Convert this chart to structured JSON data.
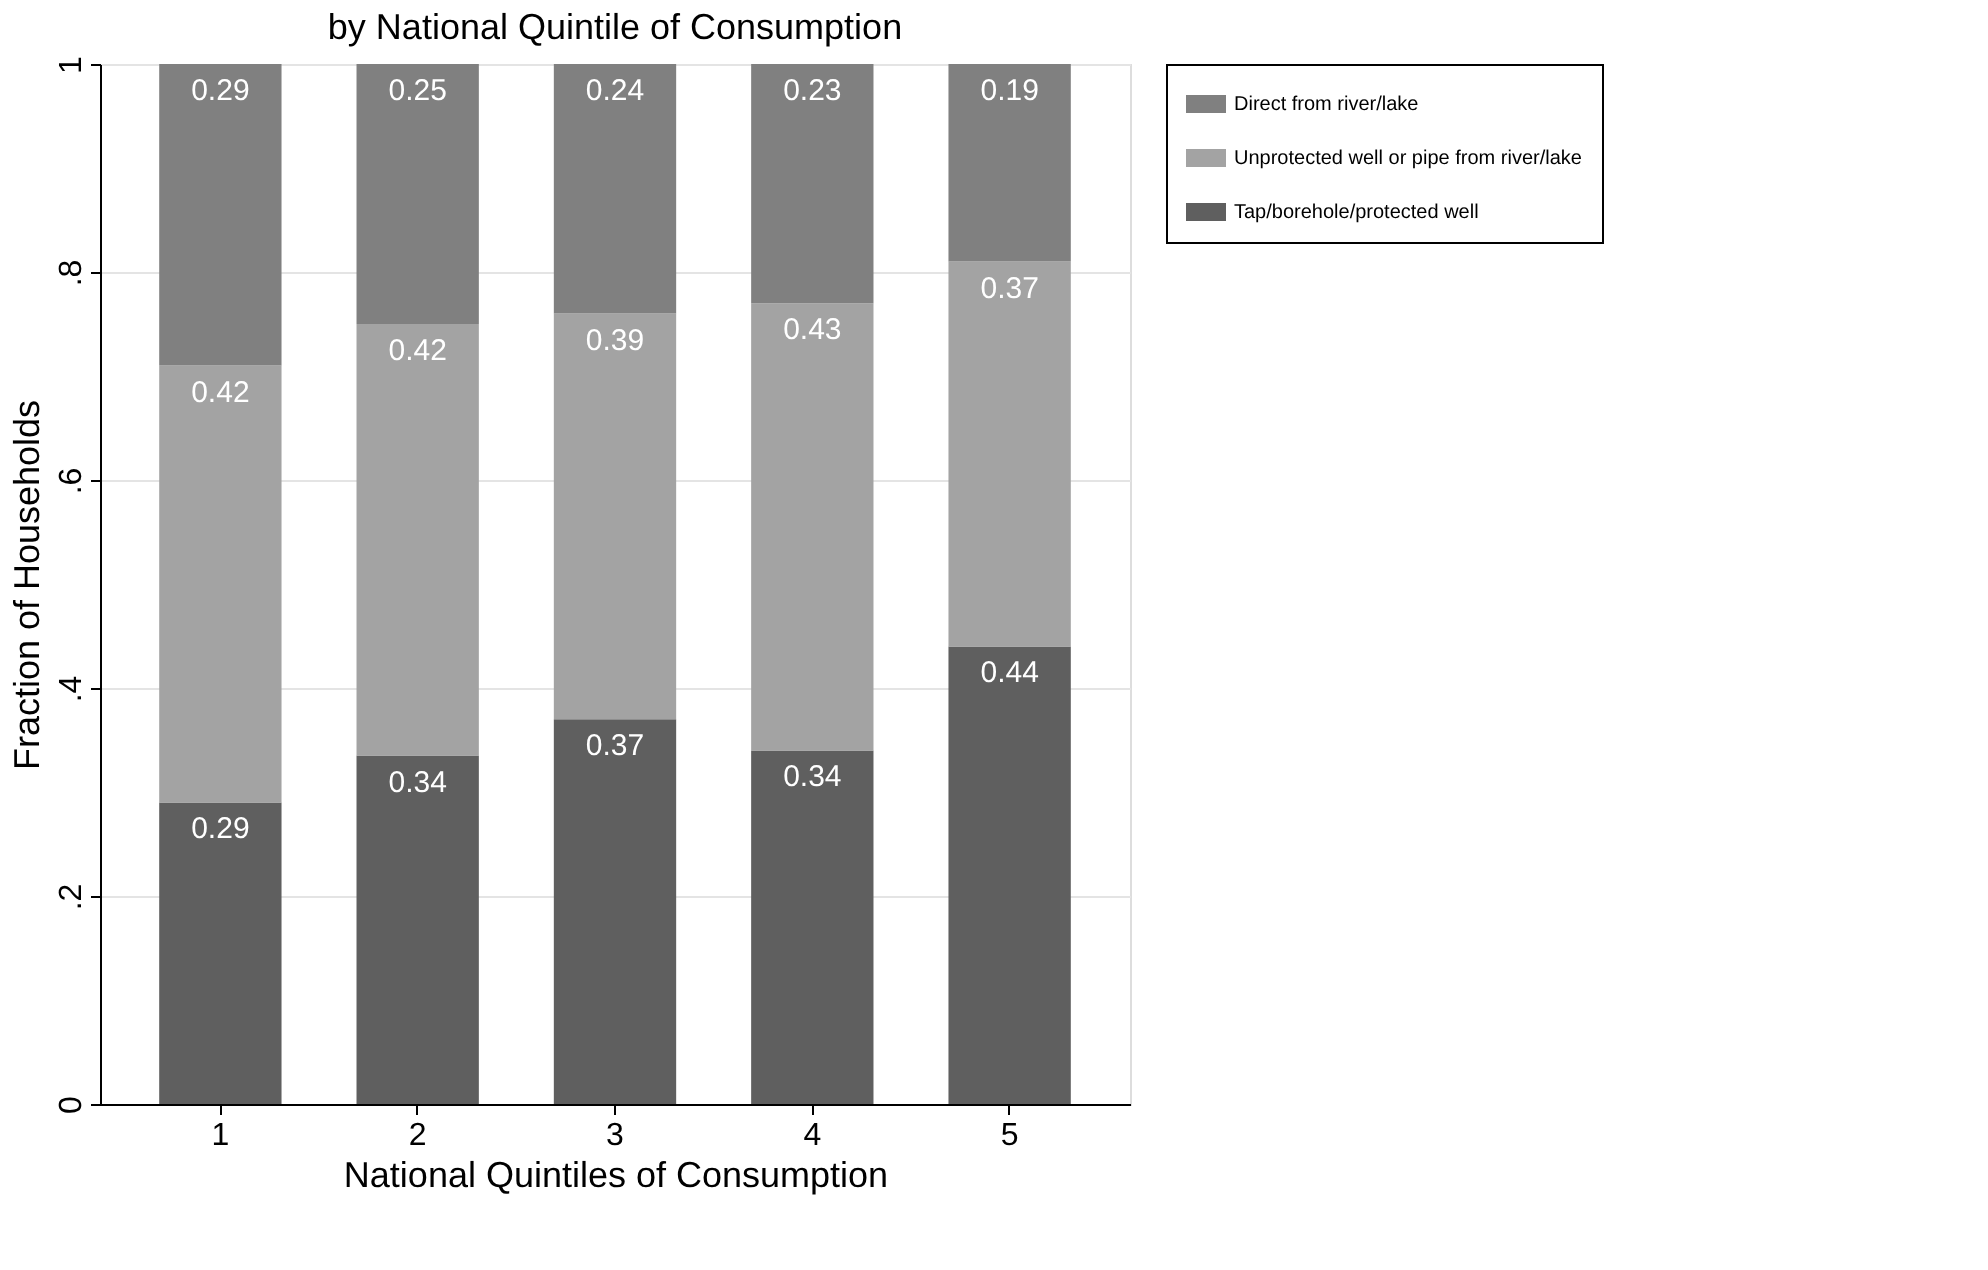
{
  "chart_data": {
    "type": "bar",
    "title": "by National Quintile of Consumption",
    "xlabel": "National Quintiles of Consumption",
    "ylabel": "Fraction of Households",
    "categories": [
      "1",
      "2",
      "3",
      "4",
      "5"
    ],
    "stacked": true,
    "series": [
      {
        "name": "Tap/borehole/protected well",
        "color": "#5f5f5f",
        "values": [
          0.29,
          0.335,
          0.37,
          0.34,
          0.44
        ],
        "value_labels": [
          "0.29",
          "0.34",
          "0.37",
          "0.34",
          "0.44"
        ]
      },
      {
        "name": "Unprotected well or pipe from river/lake",
        "color": "#a3a3a3",
        "values": [
          0.42,
          0.415,
          0.39,
          0.43,
          0.37
        ],
        "value_labels": [
          "0.42",
          "0.42",
          "0.39",
          "0.43",
          "0.37"
        ]
      },
      {
        "name": "Direct from river/lake",
        "color": "#808080",
        "values": [
          0.29,
          0.25,
          0.24,
          0.23,
          0.19
        ],
        "value_labels": [
          "0.29",
          "0.25",
          "0.24",
          "0.23",
          "0.19"
        ]
      }
    ],
    "ylim": [
      0,
      1
    ],
    "yticks": [
      {
        "value": 0,
        "label": "0"
      },
      {
        "value": 0.2,
        "label": ".2"
      },
      {
        "value": 0.4,
        "label": ".4"
      },
      {
        "value": 0.6,
        "label": ".6"
      },
      {
        "value": 0.8,
        "label": ".8"
      },
      {
        "value": 1,
        "label": "1"
      }
    ],
    "grid": "y",
    "legend": "right"
  }
}
